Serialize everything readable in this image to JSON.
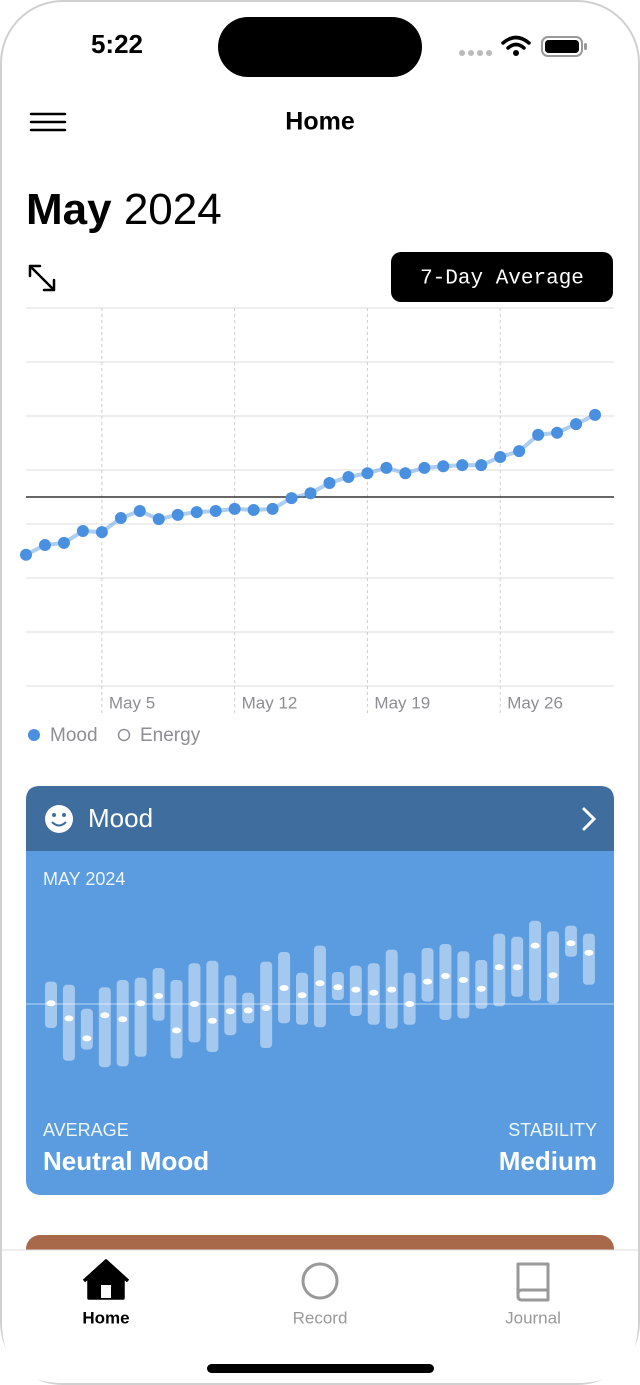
{
  "status": {
    "time": "5:22"
  },
  "nav": {
    "title": "Home"
  },
  "header": {
    "month": "May",
    "year": "2024"
  },
  "button": "7-Day Average",
  "chart_data": [
    {
      "type": "line",
      "x": [
        1,
        2,
        3,
        4,
        5,
        6,
        7,
        8,
        9,
        10,
        11,
        12,
        13,
        14,
        15,
        16,
        17,
        18,
        19,
        20,
        21,
        22,
        23,
        24,
        25,
        26,
        27,
        28,
        29,
        30,
        31
      ],
      "series": [
        {
          "name": "Mood",
          "color": "#4a90e0",
          "values": [
            2.43,
            2.61,
            2.65,
            2.87,
            2.85,
            3.11,
            3.24,
            3.09,
            3.17,
            3.22,
            3.24,
            3.28,
            3.26,
            3.28,
            3.48,
            3.57,
            3.76,
            3.87,
            3.94,
            4.04,
            3.94,
            4.04,
            4.07,
            4.09,
            4.09,
            4.24,
            4.35,
            4.65,
            4.69,
            4.85,
            5.02
          ]
        },
        {
          "name": "Energy",
          "color": "#8e8e93",
          "values": [
            null,
            null,
            null,
            null,
            null,
            null,
            null,
            null,
            null,
            null,
            null,
            null,
            null,
            null,
            null,
            null,
            null,
            null,
            null,
            null,
            null,
            null,
            null,
            null,
            null,
            null,
            null,
            null,
            null,
            null,
            null
          ]
        }
      ],
      "xlim": [
        1,
        32
      ],
      "xticks": [
        {
          "value": 5,
          "label": "May 5"
        },
        {
          "value": 12,
          "label": "May 12"
        },
        {
          "value": 19,
          "label": "May 19"
        },
        {
          "value": 26,
          "label": "May 26"
        }
      ],
      "ylim": [
        0,
        7
      ],
      "yticks": [
        0,
        1,
        2,
        3,
        4,
        5,
        6,
        7
      ],
      "reference": 3.5,
      "grid": true
    },
    {
      "type": "range",
      "title": "MAY 2024",
      "color": "#ffffff",
      "highs": [
        0.28,
        0.24,
        -0.06,
        0.21,
        0.3,
        0.33,
        0.45,
        0.3,
        0.51,
        0.54,
        0.36,
        0.14,
        0.53,
        0.65,
        0.39,
        0.73,
        0.4,
        0.48,
        0.51,
        0.68,
        0.39,
        0.7,
        0.75,
        0.66,
        0.55,
        0.88,
        0.84,
        1.04,
        0.91,
        0.98,
        0.88
      ],
      "lows": [
        -0.3,
        -0.71,
        -0.57,
        -0.79,
        -0.78,
        -0.66,
        -0.21,
        -0.68,
        -0.48,
        -0.6,
        -0.39,
        -0.24,
        -0.55,
        -0.24,
        -0.26,
        -0.29,
        0.05,
        -0.15,
        -0.26,
        -0.31,
        -0.26,
        0.03,
        -0.2,
        -0.18,
        -0.06,
        -0.03,
        0.09,
        0.04,
        0.01,
        0.59,
        0.24
      ],
      "averages": [
        0.01,
        -0.18,
        -0.43,
        -0.14,
        -0.19,
        0.01,
        0.1,
        -0.33,
        0,
        -0.21,
        -0.09,
        -0.08,
        -0.05,
        0.2,
        0.11,
        0.26,
        0.21,
        0.18,
        0.14,
        0.18,
        0,
        0.28,
        0.35,
        0.3,
        0.19,
        0.46,
        0.46,
        0.73,
        0.36,
        0.76,
        0.64
      ],
      "ylim": [
        -1.2,
        1.2
      ],
      "reference": 0
    }
  ],
  "mood_card": {
    "title": "Mood",
    "average_label": "AVERAGE",
    "average": "Neutral Mood",
    "stability_label": "STABILITY",
    "stability": "Medium"
  },
  "tabs": [
    "Home",
    "Record",
    "Journal"
  ]
}
